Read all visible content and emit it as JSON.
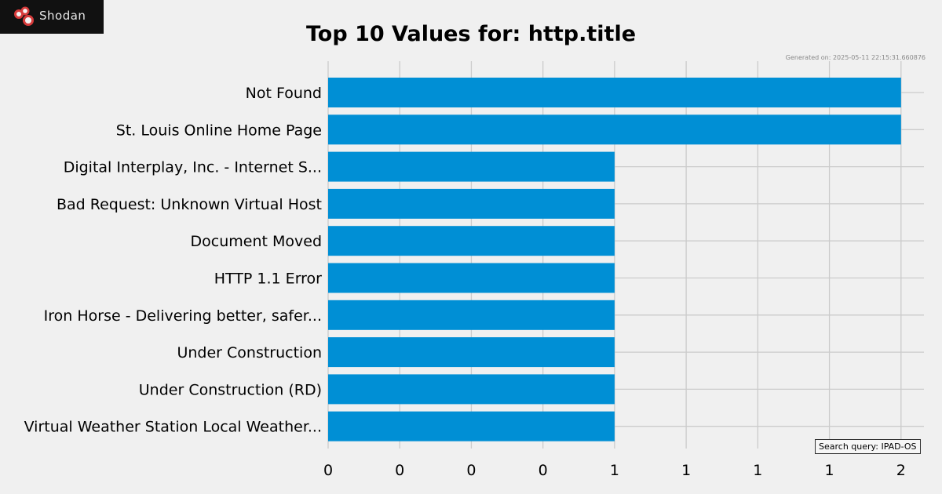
{
  "logo": {
    "text": "Shodan",
    "icon": "shodan-logo-icon",
    "colors": {
      "background": "#111111",
      "mark": "#d63b3b"
    }
  },
  "chart_data": {
    "type": "bar",
    "orientation": "horizontal",
    "title": "Top 10 Values for: http.title",
    "generated": "Generated on: 2025-05-11 22:15:31.660876",
    "query_label": "Search query: IPAD-OS",
    "categories": [
      "Not Found",
      "St. Louis Online Home Page",
      "Digital Interplay, Inc. - Internet S...",
      "Bad Request: Unknown Virtual Host",
      "Document Moved",
      "HTTP 1.1 Error",
      "Iron Horse - Delivering better, safer...",
      "Under Construction",
      "Under Construction (RD)",
      "Virtual Weather Station Local Weather..."
    ],
    "values": [
      2,
      2,
      1,
      1,
      1,
      1,
      1,
      1,
      1,
      1
    ],
    "xlim": [
      0,
      2.08
    ],
    "xticks": [
      0,
      0.25,
      0.5,
      0.75,
      1.0,
      1.25,
      1.5,
      1.75,
      2.0
    ],
    "xtick_labels": [
      "0",
      "0",
      "0",
      "0",
      "1",
      "1",
      "1",
      "1",
      "2"
    ],
    "grid": true,
    "bar_color": "#008fd5",
    "grid_color": "#cbcbcb",
    "background": "#f0f0f0"
  }
}
